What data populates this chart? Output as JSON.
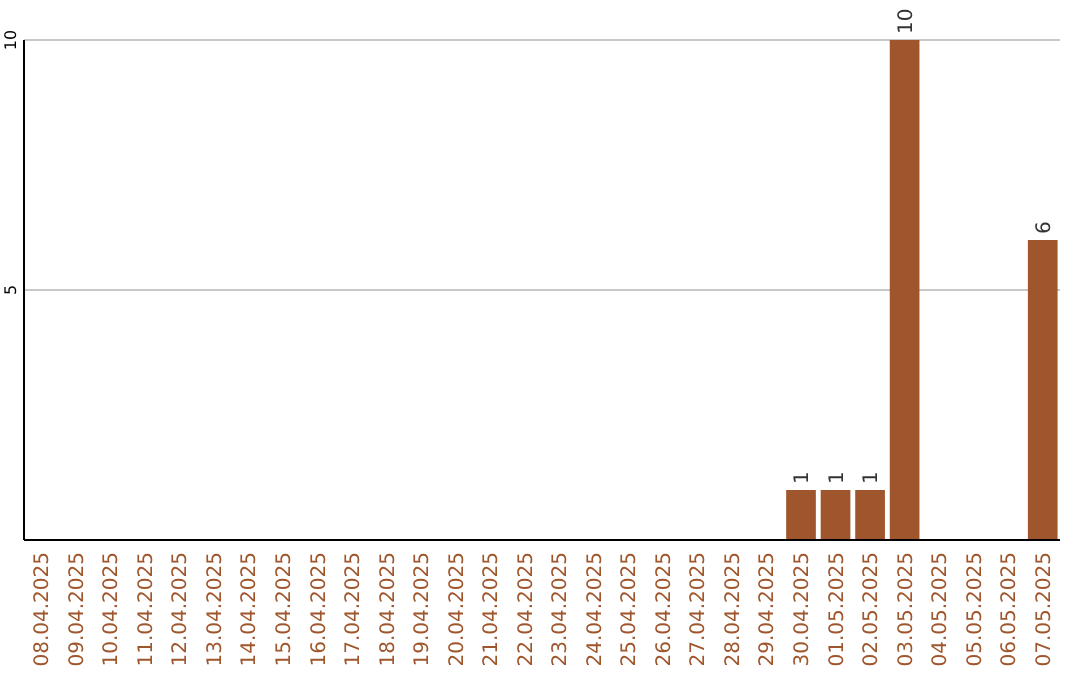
{
  "chart_data": {
    "type": "bar",
    "categories": [
      "08.04.2025",
      "09.04.2025",
      "10.04.2025",
      "11.04.2025",
      "12.04.2025",
      "13.04.2025",
      "14.04.2025",
      "15.04.2025",
      "16.04.2025",
      "17.04.2025",
      "18.04.2025",
      "19.04.2025",
      "20.04.2025",
      "21.04.2025",
      "22.04.2025",
      "23.04.2025",
      "24.04.2025",
      "25.04.2025",
      "26.04.2025",
      "27.04.2025",
      "28.04.2025",
      "29.04.2025",
      "30.04.2025",
      "01.05.2025",
      "02.05.2025",
      "03.05.2025",
      "04.05.2025",
      "05.05.2025",
      "06.05.2025",
      "07.05.2025"
    ],
    "values": [
      0,
      0,
      0,
      0,
      0,
      0,
      0,
      0,
      0,
      0,
      0,
      0,
      0,
      0,
      0,
      0,
      0,
      0,
      0,
      0,
      0,
      0,
      1,
      1,
      1,
      10,
      0,
      0,
      0,
      6
    ],
    "value_labels": [
      null,
      null,
      null,
      null,
      null,
      null,
      null,
      null,
      null,
      null,
      null,
      null,
      null,
      null,
      null,
      null,
      null,
      null,
      null,
      null,
      null,
      null,
      "1",
      "1",
      "1",
      "10",
      null,
      null,
      null,
      "6"
    ],
    "color": "#a0562c",
    "ylim": [
      0,
      10
    ],
    "yticks": [
      5,
      10
    ],
    "grid": "y"
  }
}
